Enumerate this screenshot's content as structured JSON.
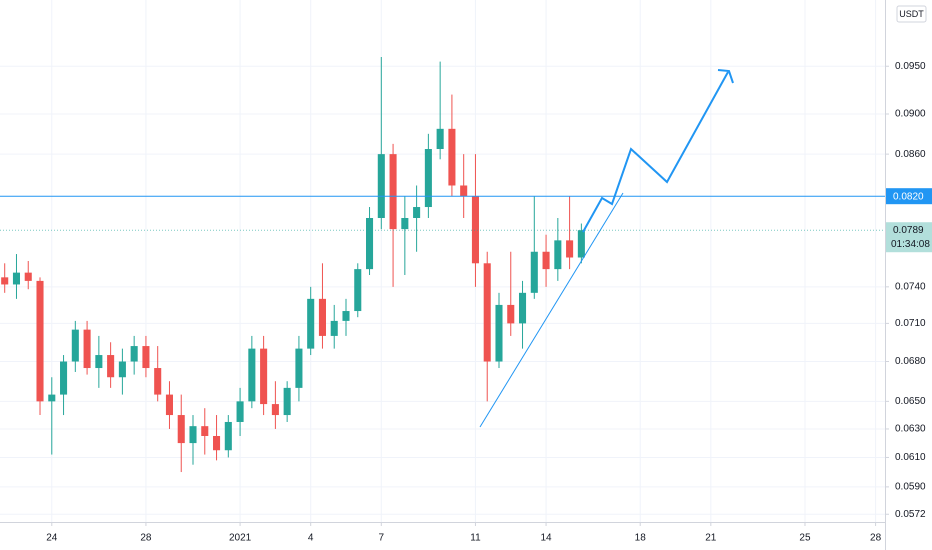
{
  "chart_data": {
    "type": "candlestick",
    "currency": "USDT",
    "x": [
      -2,
      -1.5,
      -1,
      -0.5,
      0,
      0.5,
      1,
      1.5,
      2,
      2.5,
      3,
      3.5,
      4,
      4.5,
      5,
      5.5,
      6,
      6.5,
      7,
      7.5,
      8,
      8.5,
      9,
      9.5,
      10,
      10.5,
      11,
      11.5,
      12,
      12.5,
      13,
      13.5,
      14,
      14.5,
      15,
      15.5,
      16,
      16.5,
      17,
      17.5,
      18,
      18.5,
      19,
      19.5,
      20,
      20.5,
      21,
      21.5,
      22,
      22.5
    ],
    "open": [
      0.0748,
      0.0742,
      0.0752,
      0.0745,
      0.065,
      0.0655,
      0.068,
      0.0705,
      0.0675,
      0.0685,
      0.0668,
      0.068,
      0.0692,
      0.0675,
      0.0655,
      0.064,
      0.062,
      0.0632,
      0.0625,
      0.0615,
      0.0635,
      0.065,
      0.069,
      0.0648,
      0.064,
      0.066,
      0.069,
      0.073,
      0.07,
      0.0712,
      0.072,
      0.0755,
      0.08,
      0.086,
      0.079,
      0.08,
      0.081,
      0.0865,
      0.0885,
      0.083,
      0.082,
      0.076,
      0.068,
      0.0725,
      0.071,
      0.0735,
      0.077,
      0.0755,
      0.078,
      0.0765
    ],
    "high": [
      0.076,
      0.0768,
      0.0762,
      0.0748,
      0.0668,
      0.0685,
      0.0712,
      0.0712,
      0.07,
      0.0695,
      0.069,
      0.07,
      0.07,
      0.0692,
      0.0665,
      0.0655,
      0.064,
      0.0645,
      0.064,
      0.064,
      0.066,
      0.07,
      0.07,
      0.0665,
      0.0665,
      0.07,
      0.074,
      0.076,
      0.0725,
      0.073,
      0.076,
      0.081,
      0.096,
      0.087,
      0.082,
      0.083,
      0.088,
      0.0955,
      0.092,
      0.086,
      0.086,
      0.077,
      0.0735,
      0.077,
      0.0745,
      0.082,
      0.0785,
      0.08,
      0.082,
      0.0795
    ],
    "low": [
      0.0735,
      0.073,
      0.0738,
      0.064,
      0.0612,
      0.064,
      0.0672,
      0.067,
      0.066,
      0.066,
      0.0655,
      0.067,
      0.0668,
      0.065,
      0.063,
      0.06,
      0.0605,
      0.0612,
      0.0608,
      0.061,
      0.0625,
      0.0645,
      0.064,
      0.063,
      0.0635,
      0.065,
      0.0685,
      0.069,
      0.069,
      0.07,
      0.0715,
      0.075,
      0.079,
      0.074,
      0.075,
      0.077,
      0.08,
      0.0855,
      0.082,
      0.08,
      0.074,
      0.065,
      0.0675,
      0.07,
      0.069,
      0.073,
      0.074,
      0.0745,
      0.0755,
      0.076
    ],
    "close": [
      0.0742,
      0.0752,
      0.0745,
      0.065,
      0.0655,
      0.068,
      0.0705,
      0.0675,
      0.0685,
      0.0668,
      0.068,
      0.0692,
      0.0675,
      0.0655,
      0.064,
      0.062,
      0.0632,
      0.0625,
      0.0615,
      0.0635,
      0.065,
      0.069,
      0.0648,
      0.064,
      0.066,
      0.069,
      0.073,
      0.07,
      0.0712,
      0.072,
      0.0755,
      0.08,
      0.086,
      0.079,
      0.08,
      0.081,
      0.0865,
      0.0885,
      0.083,
      0.082,
      0.076,
      0.068,
      0.0725,
      0.071,
      0.0735,
      0.077,
      0.0755,
      0.078,
      0.0765,
      0.0789
    ],
    "up_color": "#26a69a",
    "down_color": "#ef5350",
    "xlim": [
      -2.2,
      35.4
    ],
    "xticks": [
      {
        "value": 0,
        "label": "24"
      },
      {
        "value": 4,
        "label": "28"
      },
      {
        "value": 8,
        "label": "2021"
      },
      {
        "value": 11,
        "label": "4"
      },
      {
        "value": 14,
        "label": "7"
      },
      {
        "value": 18,
        "label": "11"
      },
      {
        "value": 21,
        "label": "14"
      },
      {
        "value": 25,
        "label": "18"
      },
      {
        "value": 28,
        "label": "21"
      },
      {
        "value": 32,
        "label": "25"
      },
      {
        "value": 35,
        "label": "28"
      }
    ],
    "ylim": [
      0.0567,
      0.1024
    ],
    "log_scale": true,
    "grid": true,
    "yticks": [
      {
        "value": 0.095,
        "label": "0.0950"
      },
      {
        "value": 0.09,
        "label": "0.0900"
      },
      {
        "value": 0.086,
        "label": "0.0860"
      },
      {
        "value": 0.074,
        "label": "0.0740"
      },
      {
        "value": 0.071,
        "label": "0.0710"
      },
      {
        "value": 0.068,
        "label": "0.0680"
      },
      {
        "value": 0.065,
        "label": "0.0650"
      },
      {
        "value": 0.063,
        "label": "0.0630"
      },
      {
        "value": 0.061,
        "label": "0.0610"
      },
      {
        "value": 0.059,
        "label": "0.0590"
      },
      {
        "value": 0.0572,
        "label": "0.0572"
      }
    ],
    "horizontal_line": {
      "value": 0.082,
      "label": "0.0820",
      "color": "#2196f3"
    },
    "last_price": {
      "value": 0.0789,
      "label": "0.0789"
    },
    "countdown": "01:34:08"
  }
}
